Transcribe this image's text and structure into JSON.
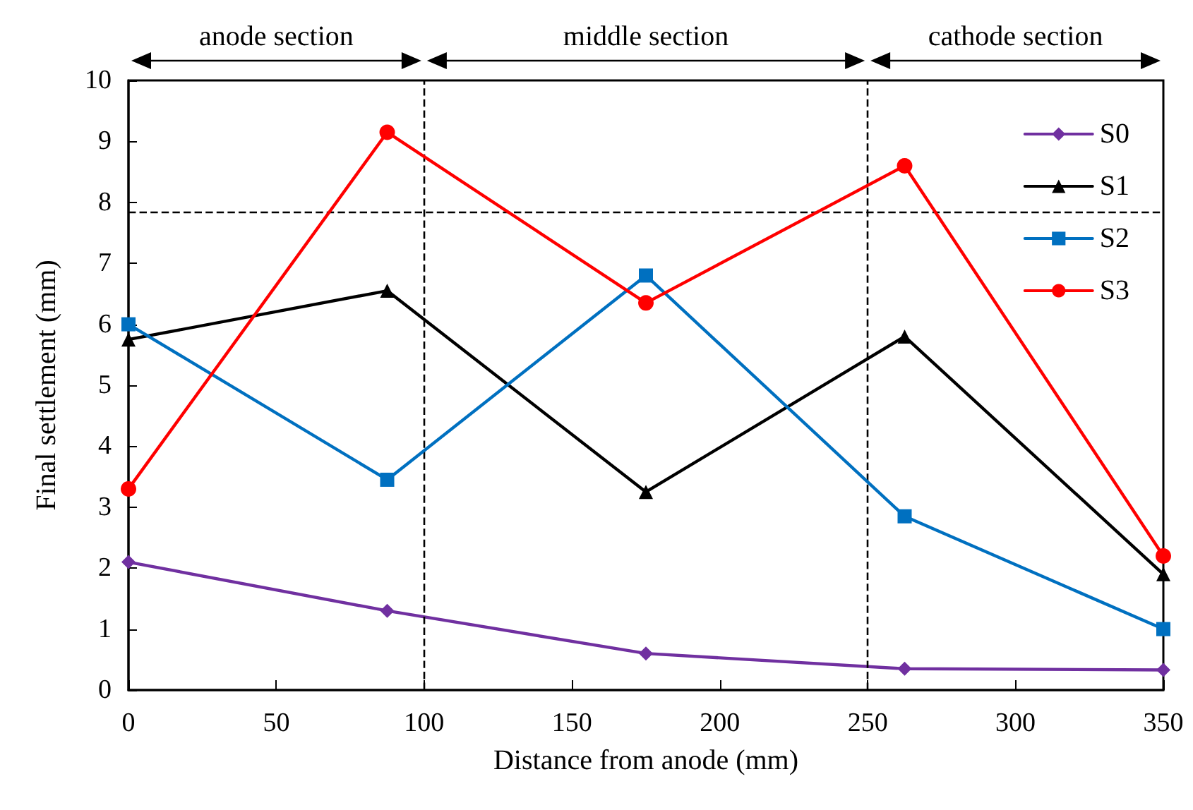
{
  "chart_data": {
    "type": "line",
    "xlabel": "Distance from anode (mm)",
    "ylabel": "Final settlement (mm)",
    "x": [
      0,
      87.5,
      175,
      262.5,
      350
    ],
    "series": [
      {
        "name": "S0",
        "color": "#7030a0",
        "marker": "diamond",
        "values": [
          2.1,
          1.3,
          0.6,
          0.35,
          0.33
        ]
      },
      {
        "name": "S1",
        "color": "#000000",
        "marker": "triangle",
        "values": [
          5.75,
          6.55,
          3.25,
          5.8,
          1.9
        ]
      },
      {
        "name": "S2",
        "color": "#0070c0",
        "marker": "square",
        "values": [
          6.0,
          3.45,
          6.8,
          2.85,
          1.0
        ]
      },
      {
        "name": "S3",
        "color": "#ff0000",
        "marker": "circle",
        "values": [
          3.3,
          9.15,
          6.35,
          8.6,
          2.2
        ]
      }
    ],
    "xlim": [
      0,
      350
    ],
    "xticks": [
      0,
      50,
      100,
      150,
      200,
      250,
      300,
      350
    ],
    "ylim": [
      0,
      10
    ],
    "yticks": [
      0,
      1,
      2,
      3,
      4,
      5,
      6,
      7,
      8,
      9,
      10
    ],
    "ref_lines": [
      {
        "axis": "y",
        "value": 7.85,
        "line_style": "dashed"
      },
      {
        "axis": "x",
        "value": 100,
        "line_style": "dashed"
      },
      {
        "axis": "x",
        "value": 250,
        "line_style": "dashed"
      }
    ],
    "annotations": [
      "anode section",
      "middle section",
      "cathode section"
    ],
    "grid": false,
    "legend": "top right",
    "line_style": "solid"
  }
}
